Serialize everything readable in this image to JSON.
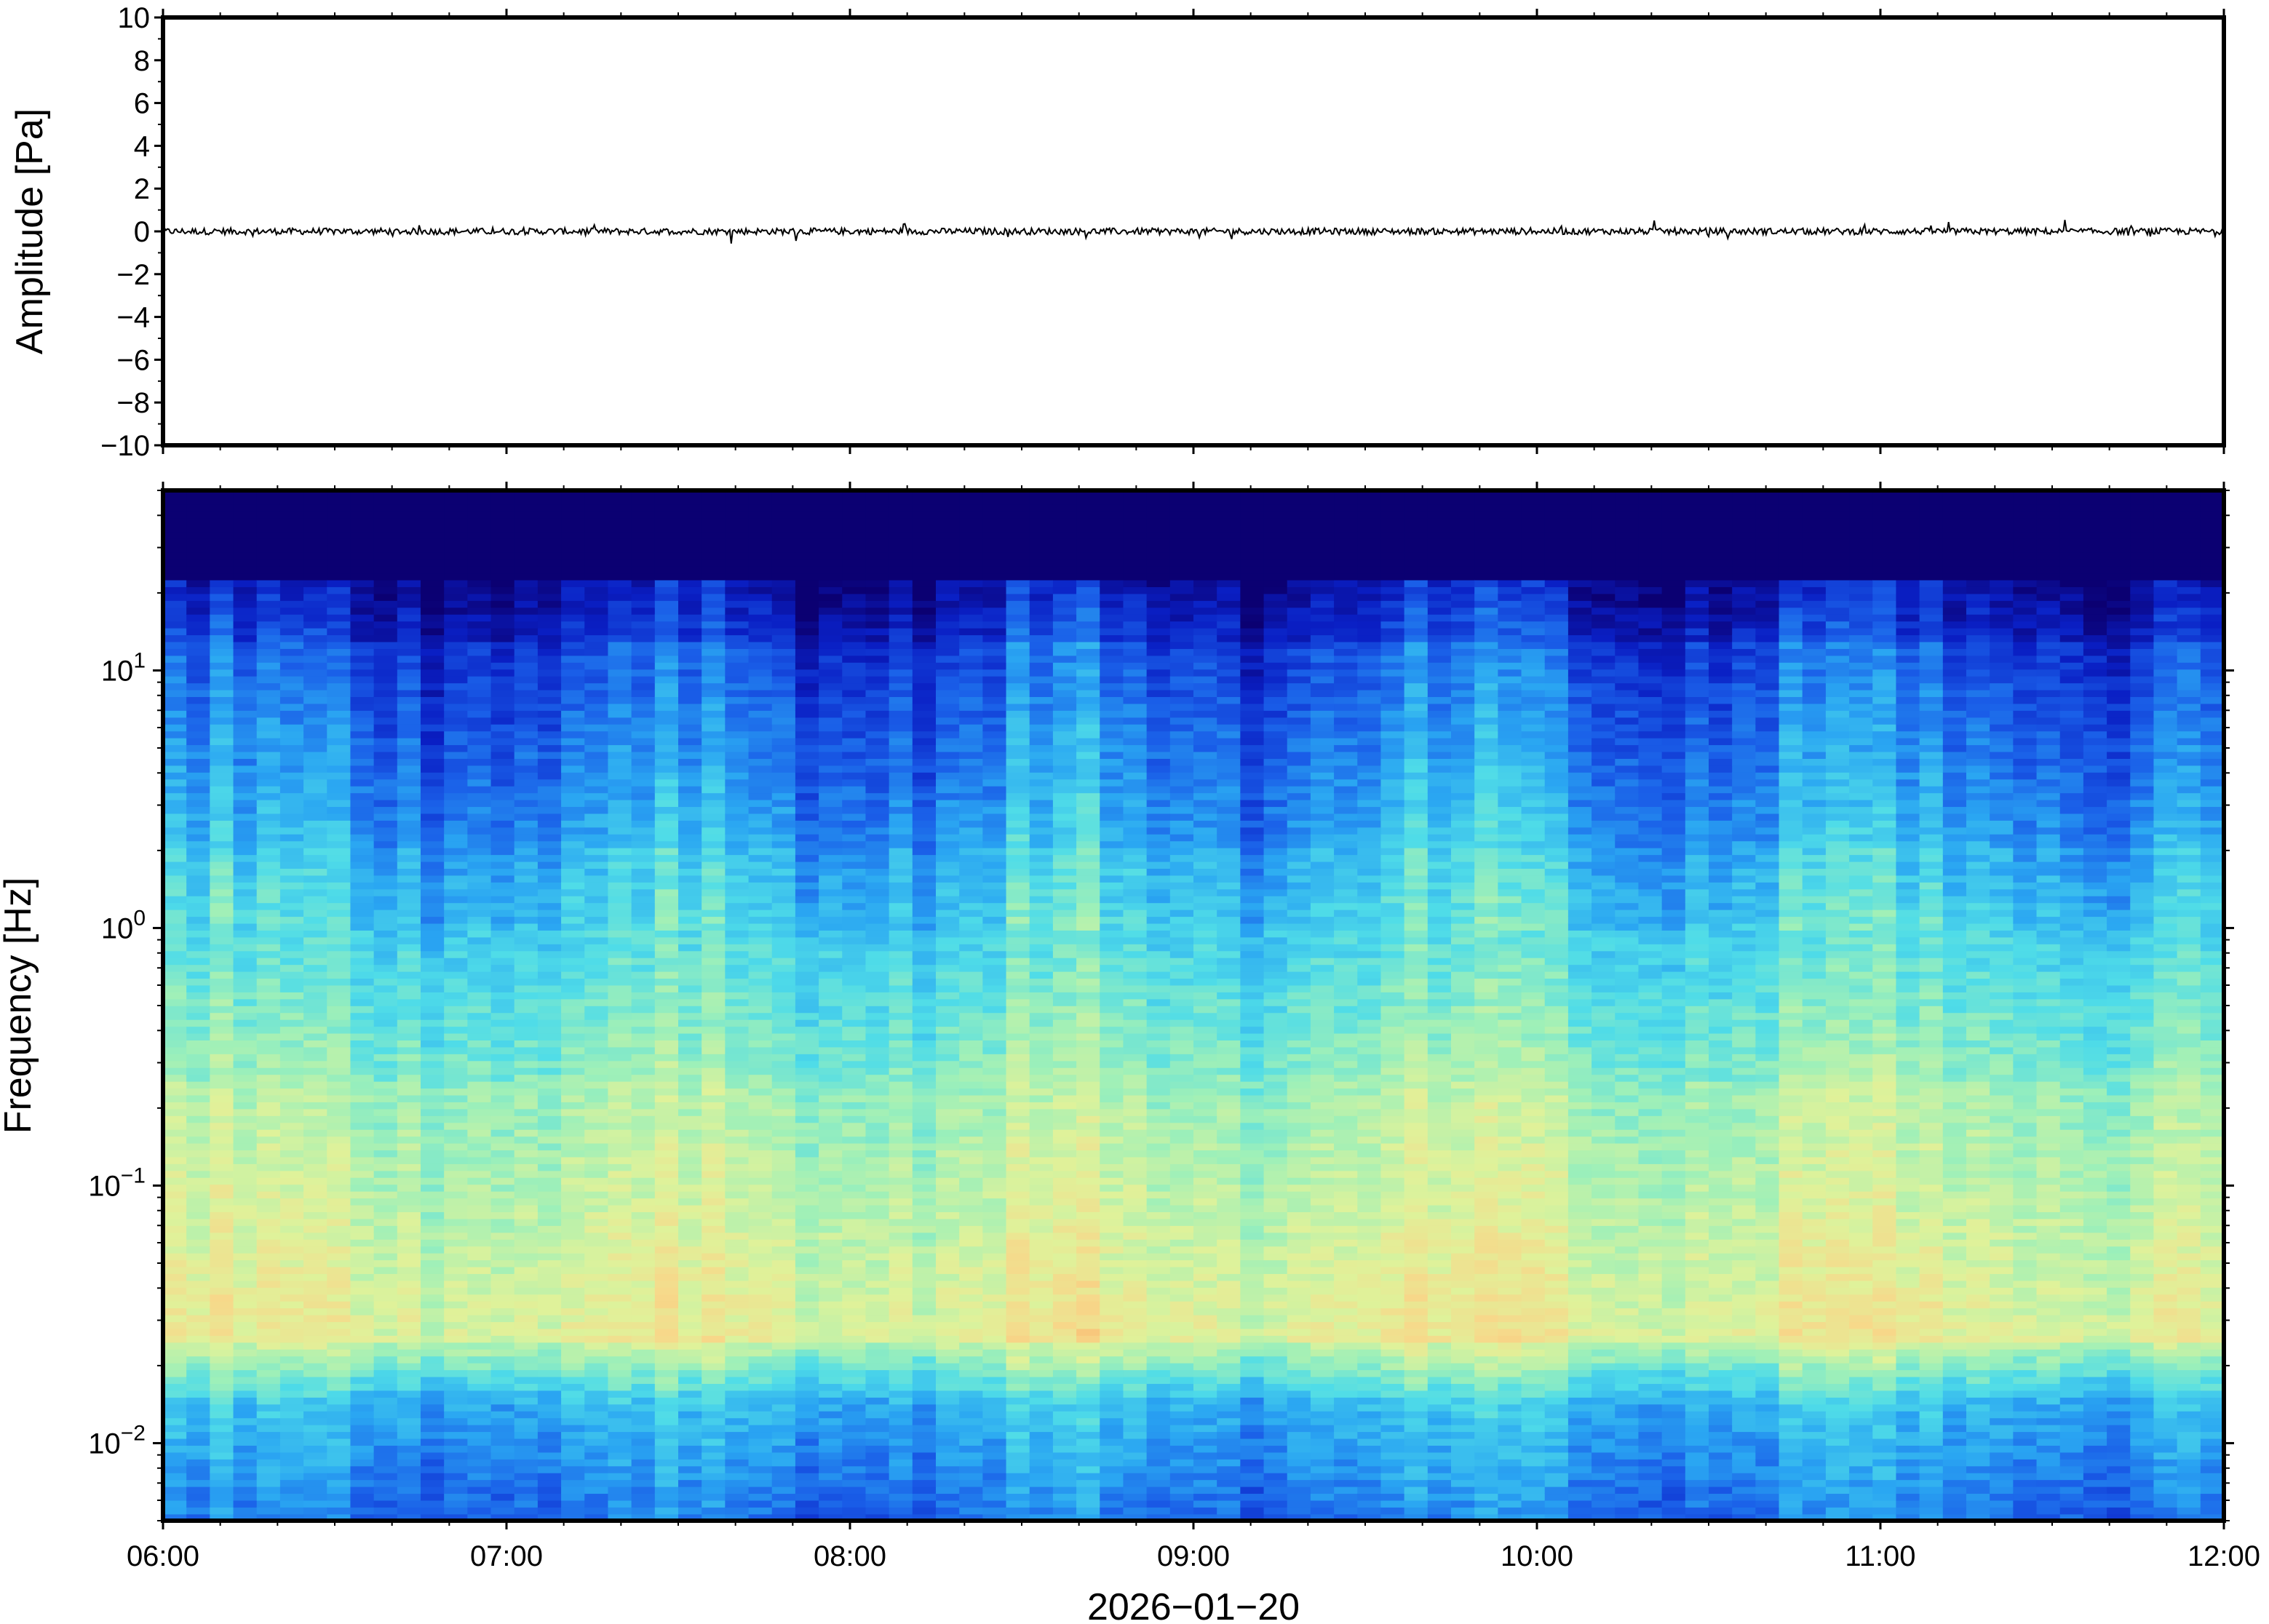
{
  "chart_data": [
    {
      "type": "line",
      "title": "",
      "ylabel": "Amplitude [Pa]",
      "ylim": [
        -10,
        10
      ],
      "yticks": [
        "−10",
        "−8",
        "−6",
        "−4",
        "−2",
        "0",
        "2",
        "4",
        "6",
        "8",
        "10"
      ],
      "x_range": [
        "06:00",
        "12:00"
      ],
      "series": [
        {
          "description_values": "waveform near 0 Pa, noise amplitude about ±0.3 Pa",
          "y_mean": 0,
          "y_noise": 0.3
        }
      ],
      "grid": false
    },
    {
      "type": "heatmap",
      "ylabel": "Frequency [Hz]",
      "yscale": "log",
      "ylim_hz": [
        0.005,
        50
      ],
      "yticks": [
        {
          "base": "10",
          "exp": "1",
          "value": 10
        },
        {
          "base": "10",
          "exp": "0",
          "value": 1
        },
        {
          "base": "10",
          "exp": "−1",
          "value": 0.1
        },
        {
          "base": "10",
          "exp": "−2",
          "value": 0.01
        }
      ],
      "colormap": [
        "#0b0072",
        "#0a1fc4",
        "#1a5ee8",
        "#2aa6f2",
        "#4fdce8",
        "#9ff0b8",
        "#dff29a",
        "#f7d88a",
        "#f9a35c"
      ],
      "intensity_profile_by_frequency": "low above 20 Hz (dark blue), blue 2–15 Hz, cyan-green 0.3–2 Hz, yellow-orange 0.02–0.3 Hz, cyan below 0.015 Hz",
      "x_range": [
        "06:00",
        "12:00"
      ]
    }
  ],
  "xaxis": {
    "ticks": [
      "06:00",
      "07:00",
      "08:00",
      "09:00",
      "10:00",
      "11:00",
      "12:00"
    ],
    "label": "2026−01−20"
  }
}
